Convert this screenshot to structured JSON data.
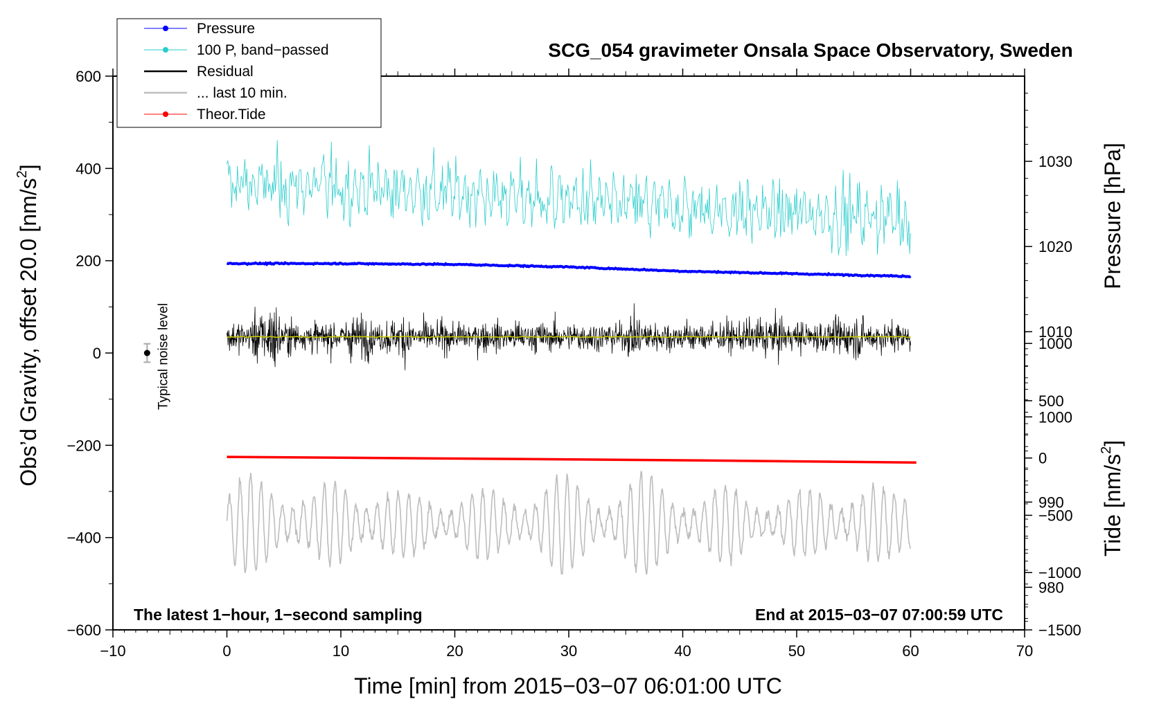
{
  "chart_data": {
    "type": "line",
    "title": "SCG_054 gravimeter Onsala Space Observatory, Sweden",
    "xlabel": "Time [min] from 2015−03−07 06:01:00 UTC",
    "ylabel": "Obs’d Gravity, offset 20.0 [nm/s",
    "ylabel_sup": "2",
    "ylabel_end": "]",
    "y2label": "Pressure [hPa]",
    "y3label": "Tide [nm/s",
    "y3label_sup": "2",
    "y3label_end": "]",
    "xlim": [
      -10,
      70
    ],
    "ylim": [
      -600,
      600
    ],
    "x_ticks": [
      -10,
      0,
      10,
      20,
      30,
      40,
      50,
      60,
      70
    ],
    "x_tick_labels": [
      "−10",
      "0",
      "10",
      "20",
      "30",
      "40",
      "50",
      "60",
      "70"
    ],
    "y_ticks": [
      -600,
      -400,
      -200,
      0,
      200,
      400,
      600
    ],
    "y_tick_labels": [
      "−600",
      "−400",
      "−200",
      "0",
      "200",
      "400",
      "600"
    ],
    "pressure_axis": {
      "ticks": [
        980,
        990,
        1000,
        1010,
        1020,
        1030
      ],
      "tick_labels": [
        "980",
        "990",
        "1000",
        "1010",
        "1020",
        "1030"
      ],
      "range_hpa": [
        975.0,
        1040.0
      ]
    },
    "tide_axis": {
      "ticks": [
        -1500,
        -1000,
        -500,
        0,
        500,
        1000
      ],
      "tick_labels": [
        "−1500",
        "−1000",
        "−500",
        "0",
        "500",
        "1000"
      ],
      "range_nms2": [
        -1500,
        3333
      ]
    },
    "series": [
      {
        "name": "Pressure",
        "color": "#0000ff",
        "marker": "dot",
        "x": [
          0,
          10,
          20,
          30,
          40,
          50,
          60
        ],
        "values_hpa": [
          1018.0,
          1018.0,
          1017.9,
          1017.6,
          1017.1,
          1016.8,
          1016.5
        ]
      },
      {
        "name": "100 P, band−passed",
        "color": "#29cccc",
        "marker": "dot",
        "center_gravity": 340,
        "amplitude_nms2": 90
      },
      {
        "name": "Residual",
        "color": "#000000",
        "marker": "none",
        "center_gravity": 35,
        "amplitude_nms2": 70
      },
      {
        "name": "... last 10 min.",
        "color": "#bdbdbd",
        "marker": "none",
        "center_gravity": -370,
        "amplitude_nms2": 80
      },
      {
        "name": "Theor.Tide",
        "color": "#ff0000",
        "marker": "dot",
        "x": [
          0,
          20,
          40,
          60.5
        ],
        "values_nms2": [
          10,
          -5,
          -20,
          -40
        ]
      }
    ],
    "smoothed_residual": {
      "color": "#c8c800",
      "value_gravity": 35
    },
    "noise_marker": {
      "x": -7,
      "y": 0,
      "error": 20,
      "label": "Typical noise level"
    },
    "annotations": {
      "left": "The latest 1−hour, 1−second sampling",
      "right": "End at 2015−03−07 07:00:59 UTC"
    },
    "legend_position": "top-left"
  }
}
